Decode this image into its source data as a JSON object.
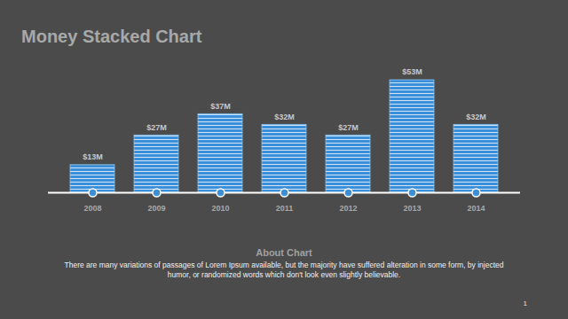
{
  "chart_data": {
    "type": "bar",
    "title": "Money Stacked Chart",
    "categories": [
      "2008",
      "2009",
      "2010",
      "2011",
      "2012",
      "2013",
      "2014"
    ],
    "values": [
      13,
      27,
      37,
      32,
      27,
      53,
      32
    ],
    "value_labels": [
      "$13M",
      "$27M",
      "$37M",
      "$32M",
      "$27M",
      "$53M",
      "$32M"
    ],
    "color": "#3b8fd8",
    "data_labels": true,
    "tick_labels": "x",
    "annotations": [
      "About Chart",
      "There are many variations of passages of Lorem Ipsum available, but the majority have suffered alteration in some form, by injected humor, or randomized words which don't look even slightly believable.",
      "1"
    ]
  }
}
